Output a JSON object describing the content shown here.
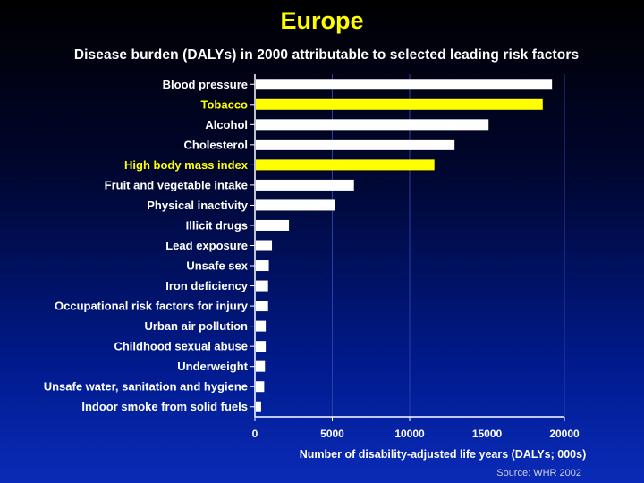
{
  "title": "Europe",
  "subtitle": "Disease burden (DALYs) in 2000 attributable to selected leading risk factors",
  "source": "Source: WHR 2002",
  "colors": {
    "highlight": "#ffff00",
    "default": "#ffffff"
  },
  "chart_data": {
    "type": "bar",
    "orientation": "horizontal",
    "categories": [
      "Blood pressure",
      "Tobacco",
      "Alcohol",
      "Cholesterol",
      "High body mass index",
      "Fruit and vegetable intake",
      "Physical inactivity",
      "Illicit drugs",
      "Lead exposure",
      "Unsafe sex",
      "Iron deficiency",
      "Occupational risk factors for injury",
      "Urban air pollution",
      "Childhood sexual abuse",
      "Underweight",
      "Unsafe water, sanitation and hygiene",
      "Indoor smoke from solid fuels"
    ],
    "values": [
      19200,
      18600,
      15100,
      12900,
      11600,
      6400,
      5200,
      2200,
      1100,
      900,
      850,
      850,
      700,
      700,
      650,
      600,
      400
    ],
    "highlighted": [
      "Tobacco",
      "High body mass index"
    ],
    "xlabel": "Number of disability-adjusted life years (DALYs; 000s)",
    "xlim": [
      0,
      20000
    ],
    "xticks": [
      0,
      5000,
      10000,
      15000,
      20000
    ],
    "grid": true
  }
}
